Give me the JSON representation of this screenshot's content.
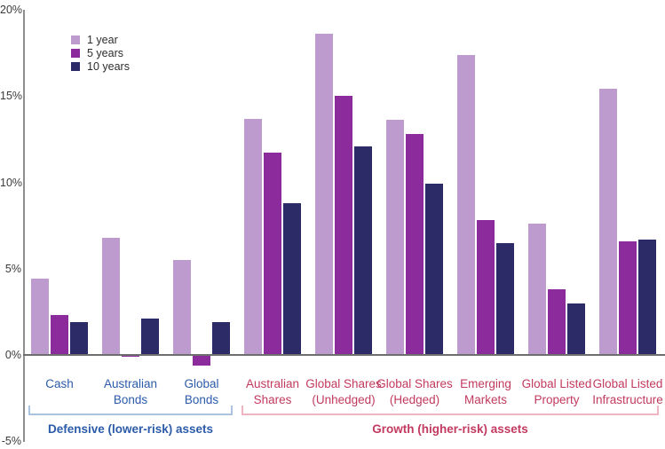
{
  "chart_data": {
    "type": "bar",
    "title": "",
    "xlabel": "",
    "ylabel": "",
    "ylim": [
      -5,
      20
    ],
    "grid": false,
    "legend_position": "top-left",
    "ytick_labels": [
      "20%",
      "15%",
      "10%",
      "5%",
      "0%",
      "-5%"
    ],
    "categories": [
      {
        "lines": [
          "Cash"
        ],
        "group": 0
      },
      {
        "lines": [
          "Australian",
          "Bonds"
        ],
        "group": 0
      },
      {
        "lines": [
          "Global",
          "Bonds"
        ],
        "group": 0
      },
      {
        "lines": [
          "Australian",
          "Shares"
        ],
        "group": 1
      },
      {
        "lines": [
          "Global Shares",
          "(Unhedged)"
        ],
        "group": 1
      },
      {
        "lines": [
          "Global Shares",
          "(Hedged)"
        ],
        "group": 1
      },
      {
        "lines": [
          "Emerging",
          "Markets"
        ],
        "group": 1
      },
      {
        "lines": [
          "Global Listed",
          "Property"
        ],
        "group": 1
      },
      {
        "lines": [
          "Global Listed",
          "Infrastructure"
        ],
        "group": 1
      }
    ],
    "series": [
      {
        "name": "1 year",
        "color": "#bd9bce",
        "values": [
          4.4,
          6.8,
          5.5,
          13.7,
          18.6,
          13.6,
          17.4,
          7.6,
          15.4
        ]
      },
      {
        "name": "5 years",
        "color": "#8c2b9b",
        "values": [
          2.3,
          -0.1,
          -0.6,
          11.7,
          15.0,
          12.8,
          7.8,
          3.8,
          6.6
        ]
      },
      {
        "name": "10 years",
        "color": "#2d2a68",
        "values": [
          1.9,
          2.1,
          1.9,
          8.8,
          12.1,
          9.9,
          6.5,
          3.0,
          6.7
        ]
      }
    ],
    "groups": [
      {
        "label": "Defensive (lower-risk) assets",
        "first_category": 0,
        "last_category": 2,
        "label_color": "#2b5ba9",
        "bracket_color": "#aac3de"
      },
      {
        "label": "Growth (higher-risk) assets",
        "first_category": 3,
        "last_category": 8,
        "label_color": "#c23a5f",
        "bracket_color": "#f0b4c3"
      }
    ],
    "category_label_colors": [
      "#2b5ba9",
      "#c23a5f"
    ]
  }
}
